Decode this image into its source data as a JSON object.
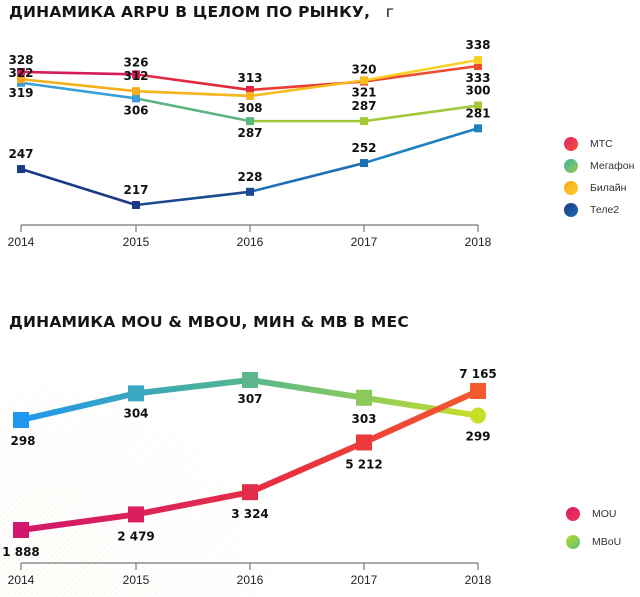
{
  "chart_data": [
    {
      "type": "line",
      "title": "ДИНАМИКА ARPU В ЦЕЛОМ ПО РЫНКУ,",
      "title_suffix": "г",
      "xlabel": "",
      "ylabel": "",
      "x": [
        "2014",
        "2015",
        "2016",
        "2017",
        "2018"
      ],
      "ylim": [
        200,
        345
      ],
      "grid": false,
      "legend_position": "right",
      "series": [
        {
          "name": "МТС",
          "values": [
            328,
            326,
            313,
            320,
            333
          ],
          "color": "#e0283f",
          "labels": [
            "328",
            "326",
            "313",
            "320",
            "333"
          ]
        },
        {
          "name": "Мегафон",
          "values": [
            319,
            306,
            287,
            287,
            300
          ],
          "color": "#4ab28a",
          "labels": [
            "319",
            "306",
            "287",
            "287",
            "300"
          ]
        },
        {
          "name": "Билайн",
          "values": [
            322,
            312,
            308,
            321,
            338
          ],
          "color": "#f6b51d",
          "labels": [
            "322",
            "312",
            "308",
            "321",
            "338"
          ]
        },
        {
          "name": "Теле2",
          "values": [
            247,
            217,
            228,
            252,
            281
          ],
          "color": "#1d4f96",
          "labels": [
            "247",
            "217",
            "228",
            "252",
            "281"
          ]
        }
      ]
    },
    {
      "type": "line",
      "title": "ДИНАМИКА MOU & MBOU, МИН & МВ В МЕС",
      "xlabel": "",
      "ylabel": "",
      "x": [
        "2014",
        "2015",
        "2016",
        "2017",
        "2018"
      ],
      "grid": false,
      "legend_position": "right",
      "series": [
        {
          "name": "MOU",
          "values": [
            1888,
            2479,
            3324,
            5212,
            7165
          ],
          "color": "#d81b6a",
          "color_end": "#f25a2e",
          "labels": [
            "1 888",
            "2 479",
            "3 324",
            "5 212",
            "7 165"
          ]
        },
        {
          "name": "MBoU",
          "values": [
            298,
            304,
            307,
            303,
            299
          ],
          "color": "#2196f3",
          "color_end": "#c6df2a",
          "labels": [
            "298",
            "304",
            "307",
            "303",
            "299"
          ]
        }
      ]
    }
  ],
  "legend1": [
    {
      "label": "МТС",
      "color_a": "#e0286b",
      "color_b": "#f5503a"
    },
    {
      "label": "Мегафон",
      "color_a": "#3bb0a0",
      "color_b": "#9ccf4a"
    },
    {
      "label": "Билайн",
      "color_a": "#f7a51b",
      "color_b": "#fcd02e"
    },
    {
      "label": "Теле2",
      "color_a": "#1a3a85",
      "color_b": "#1f6fb5"
    }
  ],
  "legend2": [
    {
      "label": "MOU",
      "color_a": "#d81b6a",
      "color_b": "#f0345a"
    },
    {
      "label": "MBoU",
      "color_a": "#b9d82a",
      "color_b": "#5cc07a"
    }
  ]
}
